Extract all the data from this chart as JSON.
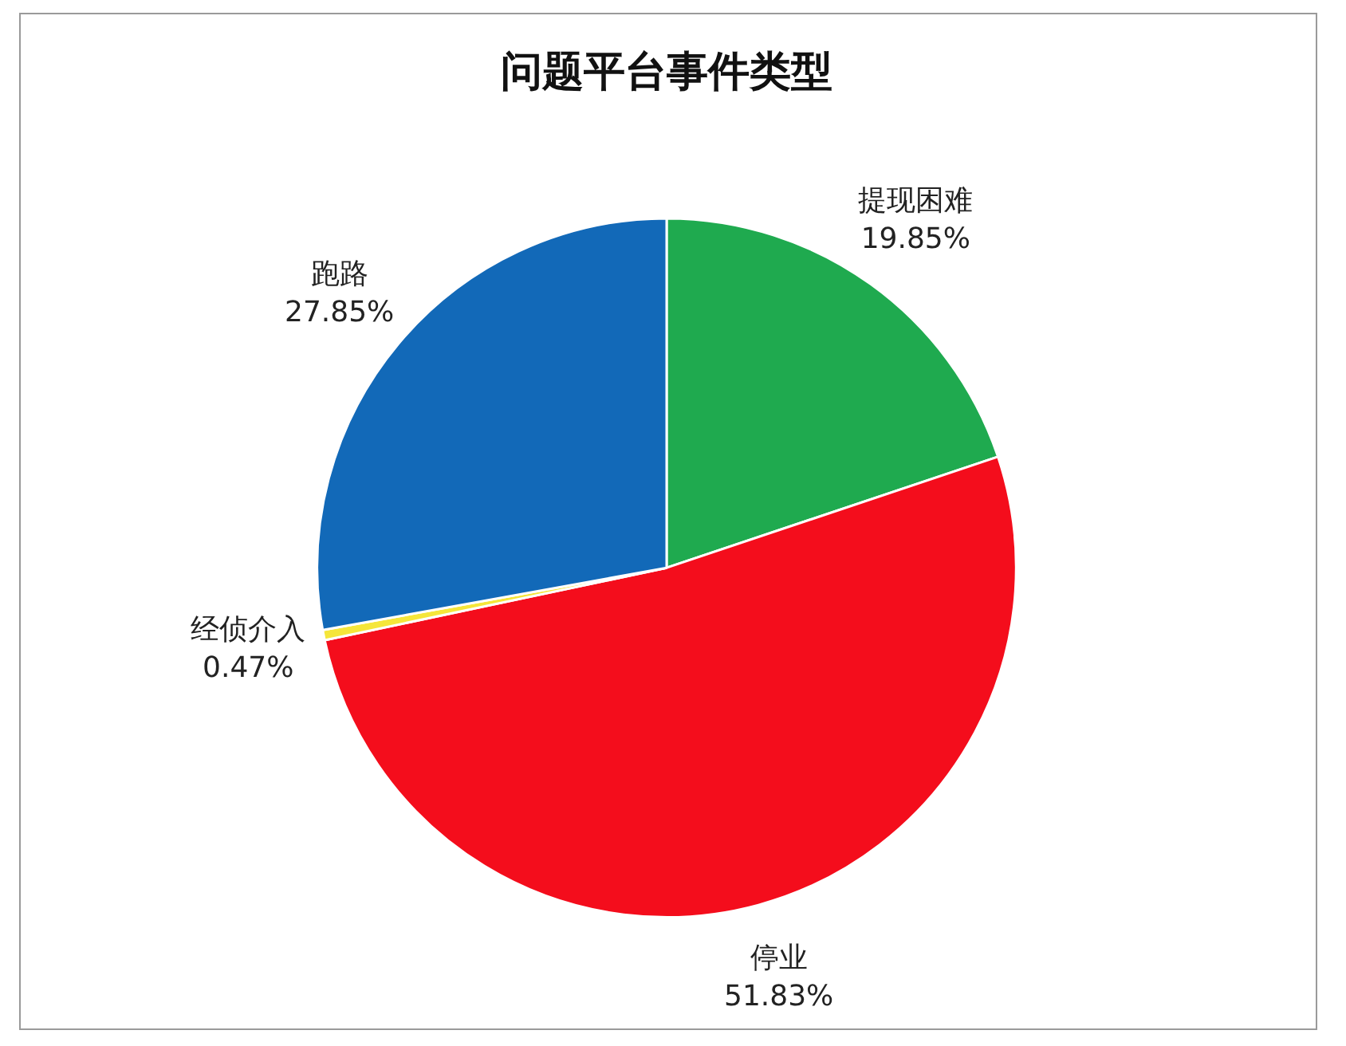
{
  "chart_data": {
    "type": "pie",
    "title": "问题平台事件类型",
    "categories": [
      "提现困难",
      "停业",
      "经侦介入",
      "跑路"
    ],
    "values": [
      19.85,
      51.83,
      0.47,
      27.85
    ],
    "colors": [
      "#1faa4f",
      "#f40d1c",
      "#f5e63a",
      "#1269b8"
    ],
    "value_labels": [
      "19.85%",
      "51.83%",
      "0.47%",
      "27.85%"
    ],
    "legend": false
  }
}
